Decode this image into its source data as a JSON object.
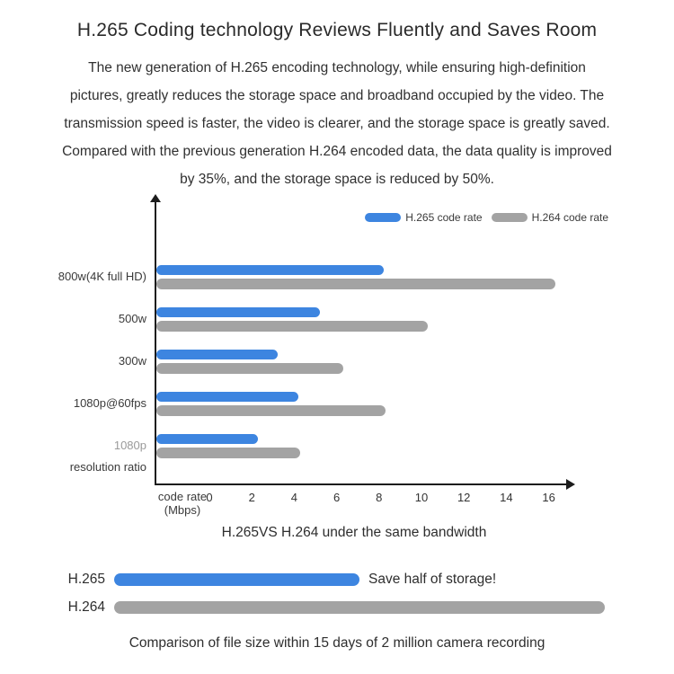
{
  "page": {
    "title": "H.265 Coding technology Reviews Fluently and Saves Room",
    "description": "The new generation of H.265 encoding technology, while ensuring high-definition\npictures, greatly reduces the storage space and broadband occupied by the video. The\ntransmission speed is faster, the video is clearer, and the storage space is greatly saved.\nCompared with the previous generation H.264 encoded data, the data quality is improved\nby 35%, and the storage space is reduced by 50%."
  },
  "colors": {
    "h265_blue": "#3d85e0",
    "h264_gray": "#a3a3a3",
    "axis": "#1c1c1c",
    "muted_label": "#9a9a9a"
  },
  "chart_data": [
    {
      "type": "bar",
      "orientation": "horizontal",
      "title": "H.265VS H.264 under the same bandwidth",
      "xlabel": "code rate (Mbps)",
      "xlabel_lines": [
        "code rate",
        "(Mbps)"
      ],
      "ylabel": "resolution ratio",
      "xlim": [
        0,
        16
      ],
      "x_ticks": [
        0,
        2,
        4,
        6,
        8,
        10,
        12,
        14,
        16
      ],
      "grid": false,
      "legend_position": "top-right",
      "categories": [
        "800w(4K full HD)",
        "500w",
        "300w",
        "1080p@60fps",
        "1080p"
      ],
      "category_muted": [
        false,
        false,
        false,
        false,
        true
      ],
      "series": [
        {
          "name": "H.265 code rate",
          "color": "#3d85e0",
          "values": [
            8.2,
            5.2,
            3.2,
            4.2,
            2.3
          ]
        },
        {
          "name": "H.264 code rate",
          "color": "#a3a3a3",
          "values": [
            16.3,
            10.3,
            6.3,
            8.3,
            4.3
          ]
        }
      ]
    },
    {
      "type": "bar",
      "orientation": "horizontal",
      "title": "Comparison of file size within 15 days of 2 million camera recording",
      "annotation": "Save half of storage!",
      "categories": [
        "H.265",
        "H.264"
      ],
      "values": [
        0.5,
        1.0
      ],
      "values_unit": "relative file size",
      "colors": [
        "#3d85e0",
        "#a3a3a3"
      ]
    }
  ]
}
